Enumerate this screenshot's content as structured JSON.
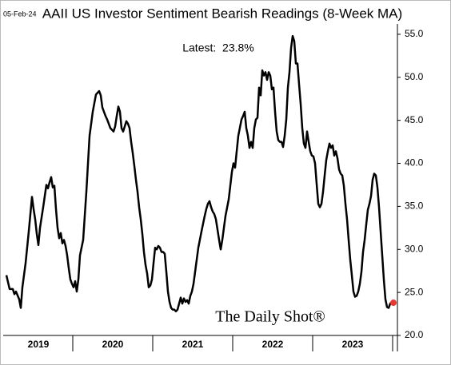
{
  "chart_data": {
    "type": "line",
    "title": "AAII US Investor Sentiment Bearish Readings (8-Week MA)",
    "date_stamp": "05-Feb-24",
    "annotation": "Latest:  23.8%",
    "watermark": "The Daily Shot®",
    "color": "#000000",
    "latest_marker_color": "#e8382f",
    "xlim": [
      2019.13,
      2024.06
    ],
    "ylim": [
      20,
      56.2
    ],
    "yticks": [
      {
        "value": 20,
        "label": "20.0"
      },
      {
        "value": 25,
        "label": "25.0"
      },
      {
        "value": 30,
        "label": "30.0"
      },
      {
        "value": 35,
        "label": "35.0"
      },
      {
        "value": 40,
        "label": "40.0"
      },
      {
        "value": 45,
        "label": "45.0"
      },
      {
        "value": 50,
        "label": "50.0"
      },
      {
        "value": 55,
        "label": "55.0"
      }
    ],
    "xticks": [
      {
        "value": 2019.57,
        "label": "2019"
      },
      {
        "value": 2020.5,
        "label": "2020"
      },
      {
        "value": 2021.5,
        "label": "2021"
      },
      {
        "value": 2022.5,
        "label": "2022"
      },
      {
        "value": 2023.5,
        "label": "2023"
      }
    ],
    "xtick_marks": [
      2020,
      2021,
      2022,
      2023,
      2024
    ],
    "grid": false,
    "x": [
      2019.17,
      2019.21,
      2019.25,
      2019.27,
      2019.29,
      2019.33,
      2019.35,
      2019.37,
      2019.41,
      2019.45,
      2019.49,
      2019.51,
      2019.53,
      2019.55,
      2019.57,
      2019.59,
      2019.63,
      2019.67,
      2019.69,
      2019.71,
      2019.73,
      2019.75,
      2019.77,
      2019.79,
      2019.81,
      2019.83,
      2019.85,
      2019.87,
      2019.89,
      2019.91,
      2019.93,
      2019.95,
      2019.97,
      2019.99,
      2020.01,
      2020.03,
      2020.05,
      2020.07,
      2020.09,
      2020.13,
      2020.17,
      2020.21,
      2020.25,
      2020.29,
      2020.33,
      2020.35,
      2020.37,
      2020.39,
      2020.41,
      2020.43,
      2020.45,
      2020.47,
      2020.51,
      2020.53,
      2020.55,
      2020.57,
      2020.59,
      2020.61,
      2020.63,
      2020.65,
      2020.67,
      2020.69,
      2020.71,
      2020.73,
      2020.75,
      2020.77,
      2020.79,
      2020.81,
      2020.83,
      2020.85,
      2020.87,
      2020.89,
      2020.91,
      2020.93,
      2020.95,
      2020.97,
      2020.99,
      2021.01,
      2021.03,
      2021.05,
      2021.07,
      2021.09,
      2021.11,
      2021.13,
      2021.15,
      2021.17,
      2021.19,
      2021.21,
      2021.23,
      2021.25,
      2021.27,
      2021.29,
      2021.31,
      2021.33,
      2021.35,
      2021.37,
      2021.39,
      2021.41,
      2021.43,
      2021.45,
      2021.47,
      2021.49,
      2021.51,
      2021.53,
      2021.57,
      2021.61,
      2021.65,
      2021.67,
      2021.69,
      2021.71,
      2021.73,
      2021.75,
      2021.77,
      2021.79,
      2021.81,
      2021.83,
      2021.85,
      2021.87,
      2021.89,
      2021.91,
      2021.95,
      2021.99,
      2022.01,
      2022.03,
      2022.05,
      2022.07,
      2022.11,
      2022.13,
      2022.15,
      2022.17,
      2022.19,
      2022.21,
      2022.23,
      2022.25,
      2022.27,
      2022.29,
      2022.31,
      2022.33,
      2022.35,
      2022.37,
      2022.39,
      2022.41,
      2022.43,
      2022.45,
      2022.47,
      2022.49,
      2022.51,
      2022.53,
      2022.55,
      2022.57,
      2022.59,
      2022.61,
      2022.63,
      2022.65,
      2022.67,
      2022.69,
      2022.71,
      2022.73,
      2022.75,
      2022.77,
      2022.79,
      2022.81,
      2022.83,
      2022.85,
      2022.87,
      2022.89,
      2022.91,
      2022.93,
      2022.95,
      2022.97,
      2022.99,
      2023.01,
      2023.03,
      2023.05,
      2023.07,
      2023.09,
      2023.11,
      2023.13,
      2023.15,
      2023.17,
      2023.19,
      2023.21,
      2023.23,
      2023.25,
      2023.27,
      2023.29,
      2023.31,
      2023.33,
      2023.35,
      2023.37,
      2023.39,
      2023.41,
      2023.43,
      2023.45,
      2023.47,
      2023.49,
      2023.51,
      2023.53,
      2023.55,
      2023.57,
      2023.59,
      2023.61,
      2023.63,
      2023.65,
      2023.67,
      2023.69,
      2023.71,
      2023.73,
      2023.75,
      2023.77,
      2023.79,
      2023.81,
      2023.83,
      2023.85,
      2023.87,
      2023.89,
      2023.91,
      2023.93,
      2023.95,
      2023.97,
      2023.99,
      2024.01
    ],
    "values": [
      27.0,
      25.4,
      25.4,
      24.8,
      25.1,
      24.2,
      23.2,
      25.6,
      28.4,
      32.1,
      36.1,
      34.7,
      33.5,
      31.8,
      30.5,
      32.5,
      34.9,
      37.5,
      37.1,
      37.8,
      38.4,
      37.2,
      37.4,
      34.7,
      32.5,
      31.3,
      31.9,
      30.7,
      31.1,
      30.4,
      29.3,
      27.8,
      26.5,
      26.0,
      25.6,
      26.3,
      25.1,
      26.5,
      29.3,
      31.1,
      36.7,
      43.2,
      46.0,
      48.0,
      48.4,
      47.9,
      46.5,
      46.0,
      45.5,
      45.1,
      44.6,
      44.1,
      43.7,
      44.3,
      45.5,
      46.6,
      46.0,
      44.1,
      43.7,
      44.3,
      44.9,
      44.6,
      44.1,
      42.5,
      41.2,
      39.7,
      38.1,
      36.7,
      34.9,
      33.5,
      31.8,
      29.7,
      28.2,
      27.2,
      25.6,
      25.8,
      26.5,
      28.4,
      30.2,
      30.0,
      30.4,
      30.2,
      29.7,
      29.7,
      29.5,
      27.4,
      25.1,
      23.9,
      23.2,
      23.0,
      23.0,
      22.8,
      23.0,
      23.7,
      24.4,
      23.7,
      24.3,
      23.9,
      24.1,
      23.7,
      24.6,
      25.1,
      26.0,
      27.4,
      30.2,
      32.1,
      33.9,
      34.7,
      35.3,
      35.6,
      34.9,
      34.4,
      34.1,
      33.5,
      32.3,
      31.1,
      30.0,
      31.1,
      32.5,
      33.9,
      35.8,
      39.0,
      40.0,
      39.5,
      41.4,
      43.2,
      45.1,
      45.5,
      46.0,
      44.1,
      43.2,
      41.8,
      42.5,
      41.8,
      44.1,
      45.1,
      45.3,
      48.8,
      47.9,
      50.8,
      50.2,
      50.6,
      49.7,
      50.6,
      50.2,
      48.6,
      48.8,
      46.0,
      43.7,
      42.7,
      42.5,
      42.5,
      41.9,
      43.2,
      45.1,
      48.8,
      50.6,
      53.4,
      54.8,
      54.2,
      51.6,
      51.6,
      49.2,
      46.9,
      44.1,
      42.3,
      41.8,
      43.7,
      42.5,
      41.4,
      40.9,
      40.8,
      40.0,
      37.6,
      35.3,
      34.9,
      35.3,
      36.7,
      38.6,
      40.4,
      41.4,
      42.3,
      41.8,
      42.1,
      40.9,
      41.4,
      40.6,
      39.3,
      38.8,
      38.6,
      37.4,
      35.3,
      33.5,
      31.1,
      28.8,
      27.0,
      25.1,
      24.5,
      24.6,
      25.1,
      26.0,
      27.4,
      29.7,
      31.1,
      32.9,
      34.6,
      35.3,
      36.2,
      38.1,
      38.8,
      38.6,
      37.2,
      34.9,
      32.1,
      29.3,
      26.5,
      24.2,
      23.3,
      23.2,
      23.7,
      23.9,
      23.8
    ]
  }
}
